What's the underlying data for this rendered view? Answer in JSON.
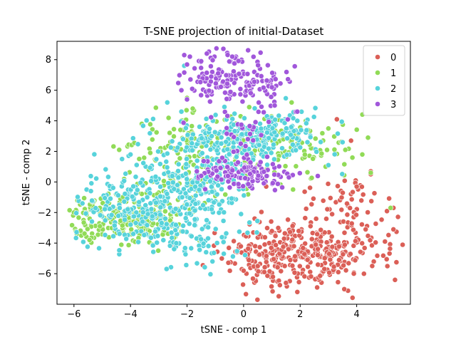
{
  "chart_data": {
    "type": "scatter",
    "title": "T-SNE projection of initial-Dataset",
    "xlabel": "tSNE - comp 1",
    "ylabel": "tSNE - comp 2",
    "xlim": [
      -6.6,
      5.9
    ],
    "ylim": [
      -8.0,
      9.2
    ],
    "xticks": [
      -6,
      -4,
      -2,
      0,
      2,
      4
    ],
    "yticks": [
      -6,
      -4,
      -2,
      0,
      2,
      4,
      6,
      8
    ],
    "legend": {
      "position": "top-right"
    },
    "grid": false,
    "series": [
      {
        "name": "0",
        "color": "#db5f57",
        "clusters": [
          {
            "center": [
              2.0,
              -4.6
            ],
            "spread": [
              1.3,
              1.2
            ],
            "count": 360
          },
          {
            "center": [
              3.8,
              -1.0
            ],
            "spread": [
              0.8,
              0.7
            ],
            "count": 40
          },
          {
            "center": [
              4.6,
              -3.4
            ],
            "spread": [
              0.5,
              0.9
            ],
            "count": 20
          }
        ],
        "points": [
          [
            5.3,
            -1.7
          ],
          [
            5.3,
            -3.1
          ],
          [
            3.8,
            2.7
          ],
          [
            4.5,
            0.7
          ],
          [
            4.0,
            -0.3
          ],
          [
            1.9,
            -7.2
          ],
          [
            0.8,
            -0.3
          ],
          [
            0.1,
            -6.0
          ],
          [
            0.5,
            -5.5
          ],
          [
            4.5,
            0.5
          ],
          [
            3.9,
            -6.0
          ],
          [
            5.0,
            -3.9
          ],
          [
            2.6,
            -6.9
          ],
          [
            1.5,
            -6.6
          ],
          [
            -0.0,
            -5.8
          ],
          [
            3.3,
            4.1
          ]
        ]
      },
      {
        "name": "1",
        "color": "#91db57",
        "clusters": [
          {
            "center": [
              -4.1,
              -2.4
            ],
            "spread": [
              1.0,
              0.8
            ],
            "count": 230
          },
          {
            "center": [
              -1.8,
              2.8
            ],
            "spread": [
              1.0,
              0.8
            ],
            "count": 90
          },
          {
            "center": [
              1.6,
              2.5
            ],
            "spread": [
              1.1,
              0.9
            ],
            "count": 90
          },
          {
            "center": [
              -0.5,
              0.6
            ],
            "spread": [
              1.3,
              0.8
            ],
            "count": 60
          },
          {
            "center": [
              -2.6,
              -0.4
            ],
            "spread": [
              1.0,
              1.0
            ],
            "count": 40
          }
        ],
        "points": [
          [
            -6.0,
            -2.0
          ],
          [
            -5.9,
            -3.4
          ],
          [
            -4.4,
            -4.5
          ],
          [
            -3.6,
            3.8
          ],
          [
            -1.8,
            4.8
          ],
          [
            -2.0,
            5.5
          ],
          [
            -0.6,
            5.4
          ],
          [
            0.2,
            4.9
          ],
          [
            1.7,
            5.2
          ],
          [
            2.2,
            4.0
          ],
          [
            3.0,
            3.5
          ],
          [
            3.6,
            2.1
          ],
          [
            4.2,
            1.8
          ],
          [
            4.5,
            0.6
          ],
          [
            5.2,
            -1.7
          ],
          [
            4.4,
            2.9
          ],
          [
            -4.4,
            2.1
          ],
          [
            -3.3,
            1.9
          ],
          [
            2.9,
            1.0
          ]
        ]
      },
      {
        "name": "2",
        "color": "#57d3db",
        "clusters": [
          {
            "center": [
              -3.3,
              -1.6
            ],
            "spread": [
              1.3,
              1.3
            ],
            "count": 260
          },
          {
            "center": [
              0.1,
              2.6
            ],
            "spread": [
              1.3,
              0.9
            ],
            "count": 230
          },
          {
            "center": [
              -1.5,
              0.2
            ],
            "spread": [
              1.0,
              1.3
            ],
            "count": 150
          },
          {
            "center": [
              -1.6,
              -3.6
            ],
            "spread": [
              0.8,
              0.9
            ],
            "count": 60
          },
          {
            "center": [
              1.6,
              3.8
            ],
            "spread": [
              0.8,
              0.6
            ],
            "count": 40
          }
        ],
        "points": [
          [
            -5.4,
            -0.6
          ],
          [
            -5.7,
            -1.4
          ],
          [
            -4.0,
            1.8
          ],
          [
            -4.3,
            1.5
          ],
          [
            -1.1,
            -5.2
          ],
          [
            -0.7,
            -4.7
          ],
          [
            -2.2,
            4.6
          ],
          [
            -2.7,
            5.2
          ],
          [
            -2.1,
            7.6
          ],
          [
            1.9,
            4.0
          ],
          [
            3.5,
            2.6
          ],
          [
            3.0,
            1.1
          ],
          [
            -3.9,
            -3.4
          ]
        ]
      },
      {
        "name": "3",
        "color": "#a157db",
        "clusters": [
          {
            "center": [
              -0.3,
              6.6
            ],
            "spread": [
              1.0,
              0.9
            ],
            "count": 170
          },
          {
            "center": [
              0.1,
              0.6
            ],
            "spread": [
              0.8,
              0.5
            ],
            "count": 120
          },
          {
            "center": [
              0.1,
              3.6
            ],
            "spread": [
              0.6,
              0.6
            ],
            "count": 20
          }
        ],
        "points": [
          [
            -2.1,
            8.3
          ],
          [
            -1.9,
            8.2
          ],
          [
            -1.3,
            8.4
          ],
          [
            -1.5,
            7.9
          ],
          [
            -0.4,
            8.2
          ],
          [
            1.0,
            6.2
          ],
          [
            1.1,
            5.0
          ],
          [
            1.9,
            4.6
          ],
          [
            -2.2,
            6.0
          ],
          [
            -2.0,
            5.4
          ],
          [
            -0.1,
            2.5
          ],
          [
            0.6,
            1.3
          ],
          [
            -1.5,
            0.4
          ],
          [
            1.6,
            0.3
          ]
        ]
      }
    ]
  }
}
